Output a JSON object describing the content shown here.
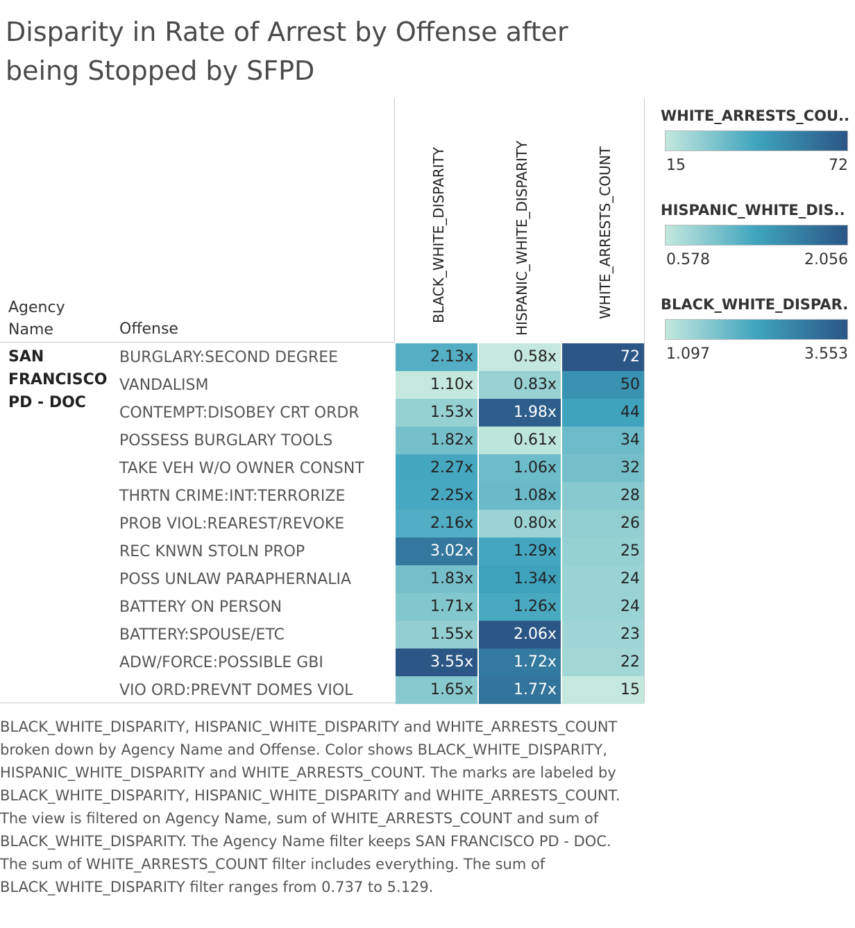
{
  "title": "Disparity in Rate of Arrest by Offense after being Stopped by SFPD",
  "row_headers": {
    "agency": "Agency Name",
    "offense": "Offense"
  },
  "legends": [
    {
      "title": "WHITE_ARRESTS_COU..",
      "min": "15",
      "max": "72"
    },
    {
      "title": "HISPANIC_WHITE_DIS..",
      "min": "0.578",
      "max": "2.056"
    },
    {
      "title": "BLACK_WHITE_DISPAR..",
      "min": "1.097",
      "max": "3.553"
    }
  ],
  "color_scale": {
    "low": "#c4e8dd",
    "mid": "#3fa4bf",
    "high": "#2b5686"
  },
  "caption": "BLACK_WHITE_DISPARITY, HISPANIC_WHITE_DISPARITY and WHITE_ARRESTS_COUNT broken down by Agency Name and Offense.  Color shows BLACK_WHITE_DISPARITY, HISPANIC_WHITE_DISPARITY and WHITE_ARRESTS_COUNT.  The marks are labeled by BLACK_WHITE_DISPARITY, HISPANIC_WHITE_DISPARITY and WHITE_ARRESTS_COUNT. The view is filtered on Agency Name, sum of WHITE_ARRESTS_COUNT and sum of BLACK_WHITE_DISPARITY. The Agency Name filter keeps SAN FRANCISCO PD - DOC. The sum of WHITE_ARRESTS_COUNT filter includes everything. The sum of BLACK_WHITE_DISPARITY filter ranges from 0.737 to 5.129.",
  "chart_data": {
    "type": "heatmap",
    "title": "Disparity in Rate of Arrest by Offense after being Stopped by SFPD",
    "agency": "SAN FRANCISCO PD - DOC",
    "columns": [
      "BLACK_WHITE_DISPARITY",
      "HISPANIC_WHITE_DISPARITY",
      "WHITE_ARRESTS_COUNT"
    ],
    "rows": [
      {
        "offense": "BURGLARY:SECOND DEGREE",
        "values": [
          2.13,
          0.58,
          72
        ],
        "labels": [
          "2.13x",
          "0.58x",
          "72"
        ]
      },
      {
        "offense": "VANDALISM",
        "values": [
          1.1,
          0.83,
          50
        ],
        "labels": [
          "1.10x",
          "0.83x",
          "50"
        ]
      },
      {
        "offense": "CONTEMPT:DISOBEY CRT ORDR",
        "values": [
          1.53,
          1.98,
          44
        ],
        "labels": [
          "1.53x",
          "1.98x",
          "44"
        ]
      },
      {
        "offense": "POSSESS BURGLARY TOOLS",
        "values": [
          1.82,
          0.61,
          34
        ],
        "labels": [
          "1.82x",
          "0.61x",
          "34"
        ]
      },
      {
        "offense": "TAKE VEH W/O OWNER CONSNT",
        "values": [
          2.27,
          1.06,
          32
        ],
        "labels": [
          "2.27x",
          "1.06x",
          "32"
        ]
      },
      {
        "offense": "THRTN CRIME:INT:TERRORIZE",
        "values": [
          2.25,
          1.08,
          28
        ],
        "labels": [
          "2.25x",
          "1.08x",
          "28"
        ]
      },
      {
        "offense": "PROB VIOL:REAREST/REVOKE",
        "values": [
          2.16,
          0.8,
          26
        ],
        "labels": [
          "2.16x",
          "0.80x",
          "26"
        ]
      },
      {
        "offense": "REC KNWN STOLN PROP",
        "values": [
          3.02,
          1.29,
          25
        ],
        "labels": [
          "3.02x",
          "1.29x",
          "25"
        ]
      },
      {
        "offense": "POSS UNLAW PARAPHERNALIA",
        "values": [
          1.83,
          1.34,
          24
        ],
        "labels": [
          "1.83x",
          "1.34x",
          "24"
        ]
      },
      {
        "offense": "BATTERY ON PERSON",
        "values": [
          1.71,
          1.26,
          24
        ],
        "labels": [
          "1.71x",
          "1.26x",
          "24"
        ]
      },
      {
        "offense": "BATTERY:SPOUSE/ETC",
        "values": [
          1.55,
          2.06,
          23
        ],
        "labels": [
          "1.55x",
          "2.06x",
          "23"
        ]
      },
      {
        "offense": "ADW/FORCE:POSSIBLE GBI",
        "values": [
          3.55,
          1.72,
          22
        ],
        "labels": [
          "3.55x",
          "1.72x",
          "22"
        ]
      },
      {
        "offense": "VIO ORD:PREVNT DOMES VIOL",
        "values": [
          1.65,
          1.77,
          15
        ],
        "labels": [
          "1.65x",
          "1.77x",
          "15"
        ]
      }
    ],
    "color_ranges": [
      [
        1.097,
        3.553
      ],
      [
        0.578,
        2.056
      ],
      [
        15,
        72
      ]
    ]
  }
}
